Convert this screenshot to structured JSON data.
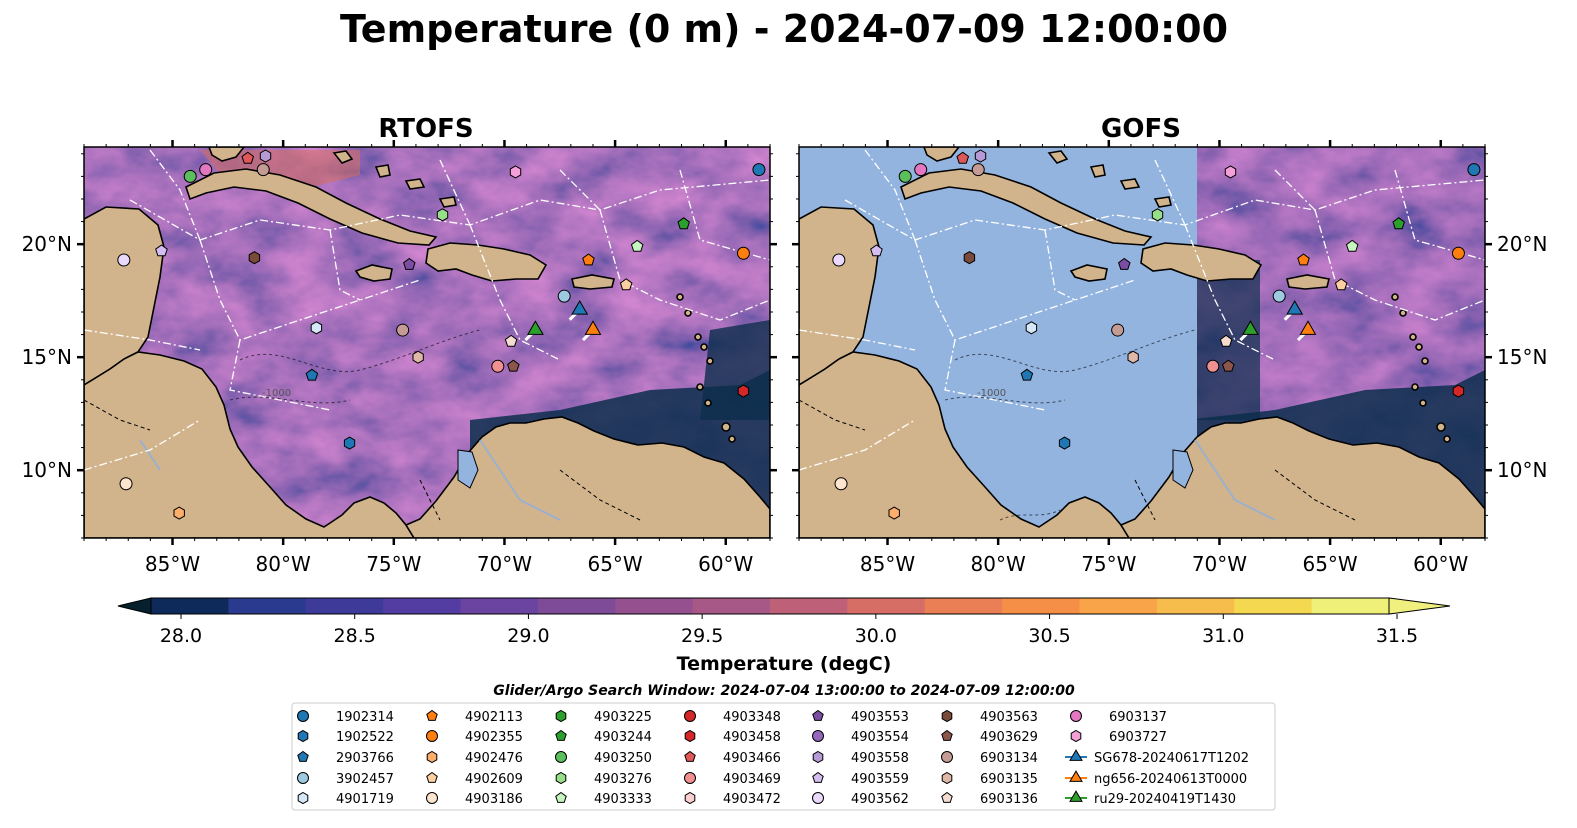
{
  "title": "Temperature (0 m) - 2024-07-09 12:00:00",
  "panels": [
    {
      "title": "RTOFS",
      "data_coverage": "full"
    },
    {
      "title": "GOFS",
      "data_coverage": "east of 71W only"
    }
  ],
  "map": {
    "lon_range": [
      -89,
      -58
    ],
    "lat_range": [
      7,
      24.3
    ],
    "x_ticks": [
      "85°W",
      "80°W",
      "75°W",
      "70°W",
      "65°W",
      "60°W"
    ],
    "x_tick_values": [
      -85,
      -80,
      -75,
      -70,
      -65,
      -60
    ],
    "y_ticks": [
      "10°N",
      "15°N",
      "20°N"
    ],
    "y_tick_values": [
      10,
      15,
      20
    ],
    "contour_label": "-1000",
    "colors": {
      "land": "#d2b48c",
      "no_data": "#94b4e0",
      "rivers": "#9ab0cc",
      "eez": "#ffffff",
      "coast": "#000000"
    }
  },
  "colorbar": {
    "label": "Temperature (degC)",
    "ticks": [
      "28.0",
      "28.5",
      "29.0",
      "29.5",
      "30.0",
      "30.5",
      "31.0",
      "31.5"
    ],
    "range": [
      28.0,
      31.5
    ],
    "colors": [
      "#0d2a5a",
      "#2a3a8f",
      "#3d3a9a",
      "#533da2",
      "#6a44a0",
      "#7e4b98",
      "#955090",
      "#a85887",
      "#be6078",
      "#d66e66",
      "#ea7e54",
      "#f58f48",
      "#f9a448",
      "#f7bd4c",
      "#f3d850",
      "#eef07a"
    ],
    "under_color": "#06202e",
    "over_color": "#f0f07e"
  },
  "search_window": "Glider/Argo Search Window: 2024-07-04 13:00:00 to 2024-07-09 12:00:00",
  "legend": [
    {
      "label": "1902314",
      "marker": "circle",
      "color": "#1f77b4"
    },
    {
      "label": "1902522",
      "marker": "hexagon",
      "color": "#1f77b4"
    },
    {
      "label": "2903766",
      "marker": "pentagon",
      "color": "#1f77b4"
    },
    {
      "label": "3902457",
      "marker": "circle",
      "color": "#9ecae1"
    },
    {
      "label": "4901719",
      "marker": "hexagon",
      "color": "#d6e8f7"
    },
    {
      "label": "4902113",
      "marker": "pentagon",
      "color": "#ff7f0e"
    },
    {
      "label": "4902355",
      "marker": "circle",
      "color": "#ff7f0e"
    },
    {
      "label": "4902476",
      "marker": "hexagon",
      "color": "#fdae6b"
    },
    {
      "label": "4902609",
      "marker": "pentagon",
      "color": "#fdd0a2"
    },
    {
      "label": "4903186",
      "marker": "circle",
      "color": "#fee6ce"
    },
    {
      "label": "4903225",
      "marker": "hexagon",
      "color": "#2ca02c"
    },
    {
      "label": "4903244",
      "marker": "pentagon",
      "color": "#2ca02c"
    },
    {
      "label": "4903250",
      "marker": "circle",
      "color": "#5bbf5b"
    },
    {
      "label": "4903276",
      "marker": "hexagon",
      "color": "#98df8a"
    },
    {
      "label": "4903333",
      "marker": "pentagon",
      "color": "#c7f5c0"
    },
    {
      "label": "4903348",
      "marker": "circle",
      "color": "#d62728"
    },
    {
      "label": "4903458",
      "marker": "hexagon",
      "color": "#d62728"
    },
    {
      "label": "4903466",
      "marker": "pentagon",
      "color": "#e05759"
    },
    {
      "label": "4903469",
      "marker": "circle",
      "color": "#f09090"
    },
    {
      "label": "4903472",
      "marker": "hexagon",
      "color": "#fcd0d0"
    },
    {
      "label": "4903553",
      "marker": "pentagon",
      "color": "#7b4ea3"
    },
    {
      "label": "4903554",
      "marker": "circle",
      "color": "#9467bd"
    },
    {
      "label": "4903558",
      "marker": "hexagon",
      "color": "#b59ad6"
    },
    {
      "label": "4903559",
      "marker": "pentagon",
      "color": "#d4bdf0"
    },
    {
      "label": "4903562",
      "marker": "circle",
      "color": "#ead9fb"
    },
    {
      "label": "4903563",
      "marker": "hexagon",
      "color": "#7a4b3a"
    },
    {
      "label": "4903629",
      "marker": "pentagon",
      "color": "#8c564b"
    },
    {
      "label": "6903134",
      "marker": "circle",
      "color": "#c49c94"
    },
    {
      "label": "6903135",
      "marker": "hexagon",
      "color": "#e0b8a8"
    },
    {
      "label": "6903136",
      "marker": "pentagon",
      "color": "#f5dcd0"
    },
    {
      "label": "6903137",
      "marker": "circle",
      "color": "#e377c2"
    },
    {
      "label": "6903727",
      "marker": "hexagon",
      "color": "#f59fd8"
    },
    {
      "label": "SG678-20240617T1202",
      "marker": "triangle",
      "color": "#1f77b4",
      "line": true
    },
    {
      "label": "ng656-20240613T0000",
      "marker": "triangle",
      "color": "#ff7f0e",
      "line": true
    },
    {
      "label": "ru29-20240419T1430",
      "marker": "triangle",
      "color": "#2ca02c",
      "line": true
    }
  ],
  "floats": [
    {
      "id": "1902314",
      "lon": -58.5,
      "lat": 23.3
    },
    {
      "id": "6903137",
      "lon": -83.5,
      "lat": 23.3
    },
    {
      "id": "4903250",
      "lon": -84.2,
      "lat": 23.0
    },
    {
      "id": "4903466",
      "lon": -81.6,
      "lat": 23.8
    },
    {
      "id": "4903558",
      "lon": -80.8,
      "lat": 23.9
    },
    {
      "id": "6903134",
      "lon": -80.9,
      "lat": 23.3
    },
    {
      "id": "4903276",
      "lon": -72.8,
      "lat": 21.3
    },
    {
      "id": "6903727",
      "lon": -69.5,
      "lat": 23.2
    },
    {
      "id": "4903244",
      "lon": -61.9,
      "lat": 20.9
    },
    {
      "id": "4903333",
      "lon": -64.0,
      "lat": 19.9
    },
    {
      "id": "4902355",
      "lon": -59.2,
      "lat": 19.6
    },
    {
      "id": "4903559",
      "lon": -85.5,
      "lat": 19.7
    },
    {
      "id": "4903562",
      "lon": -87.2,
      "lat": 19.3
    },
    {
      "id": "4903563",
      "lon": -81.3,
      "lat": 19.4
    },
    {
      "id": "4903553",
      "lon": -74.3,
      "lat": 19.1
    },
    {
      "id": "4902113",
      "lon": -66.2,
      "lat": 19.3
    },
    {
      "id": "4902609",
      "lon": -64.5,
      "lat": 18.2
    },
    {
      "id": "3902457",
      "lon": -67.3,
      "lat": 17.7
    },
    {
      "id": "4901719",
      "lon": -78.5,
      "lat": 16.3
    },
    {
      "id": "6903134b",
      "lon": -74.6,
      "lat": 16.2
    },
    {
      "id": "6903135",
      "lon": -73.9,
      "lat": 15.0
    },
    {
      "id": "6903136",
      "lon": -69.7,
      "lat": 15.7
    },
    {
      "id": "4903469",
      "lon": -70.3,
      "lat": 14.6
    },
    {
      "id": "4903629",
      "lon": -69.6,
      "lat": 14.6
    },
    {
      "id": "2903766",
      "lon": -78.7,
      "lat": 14.2
    },
    {
      "id": "4903458",
      "lon": -59.2,
      "lat": 13.5
    },
    {
      "id": "1902522",
      "lon": -77.0,
      "lat": 11.2
    },
    {
      "id": "4903186",
      "lon": -87.1,
      "lat": 9.4
    },
    {
      "id": "4902476",
      "lon": -84.7,
      "lat": 8.1
    }
  ],
  "gliders": [
    {
      "id": "SG678-20240617T1202",
      "lon": -66.6,
      "lat": 17.1
    },
    {
      "id": "ng656-20240613T0000",
      "lon": -66.0,
      "lat": 16.2
    },
    {
      "id": "ru29-20240419T1430",
      "lon": -68.6,
      "lat": 16.2
    }
  ]
}
